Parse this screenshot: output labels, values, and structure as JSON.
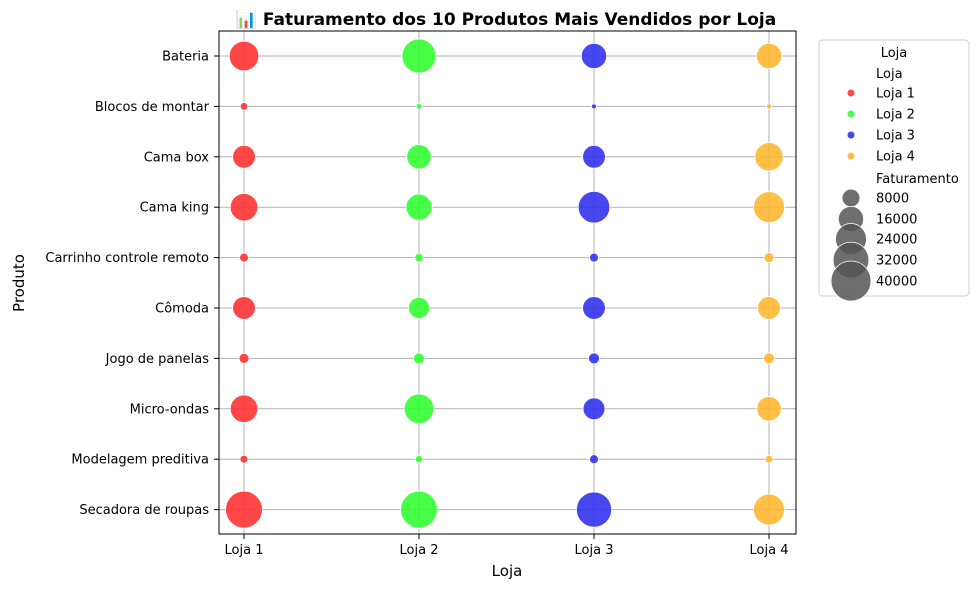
{
  "chart_data": {
    "type": "scatter",
    "title": "📊 Faturamento dos 10 Produtos Mais Vendidos por Loja",
    "xlabel": "Loja",
    "ylabel": "Produto",
    "x": [
      "Loja 1",
      "Loja 2",
      "Loja 3",
      "Loja 4"
    ],
    "y": [
      "Bateria",
      "Blocos de montar",
      "Cama box",
      "Cama king",
      "Carrinho controle remoto",
      "Cômoda",
      "Jogo de panelas",
      "Micro-ondas",
      "Modelagem preditiva",
      "Secadora de roupas"
    ],
    "grid": true,
    "series": [
      {
        "name": "Loja 1",
        "color": "#ff3333",
        "values": [
          22000,
          1500,
          13000,
          19000,
          2000,
          13000,
          2500,
          19000,
          1600,
          34000
        ]
      },
      {
        "name": "Loja 2",
        "color": "#33ff33",
        "values": [
          29000,
          800,
          15000,
          17000,
          1800,
          11000,
          3000,
          22000,
          1400,
          34000
        ]
      },
      {
        "name": "Loja 3",
        "color": "#3333ee",
        "values": [
          16000,
          200,
          13000,
          25000,
          2000,
          13000,
          3000,
          12000,
          2000,
          31000
        ]
      },
      {
        "name": "Loja 4",
        "color": "#ffb833",
        "values": [
          16000,
          600,
          20000,
          24000,
          2500,
          13000,
          3000,
          15000,
          1500,
          24000
        ]
      }
    ],
    "legend": {
      "position": "outside-right",
      "title": "Loja",
      "hue_title": "Loja",
      "size_title": "Faturamento",
      "size_values": [
        8000,
        16000,
        24000,
        32000,
        40000
      ]
    }
  }
}
